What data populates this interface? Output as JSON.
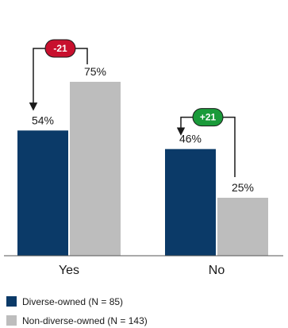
{
  "chart_data": {
    "type": "bar",
    "title": "",
    "xlabel": "",
    "ylabel": "",
    "ylim": [
      0,
      100
    ],
    "value_suffix": "%",
    "grid": false,
    "legend_position": "bottom-left",
    "categories": [
      "Yes",
      "No"
    ],
    "series": [
      {
        "name": "Diverse-owned (N = 85)",
        "color": "#0b3a68",
        "values": [
          54,
          46
        ]
      },
      {
        "name": "Non-diverse-owned (N = 143)",
        "color": "#bdbdbd",
        "values": [
          75,
          25
        ]
      }
    ],
    "annotations": [
      {
        "category": "Yes",
        "label": "-21",
        "color": "#c8102e",
        "arrow_to_series": 0
      },
      {
        "category": "No",
        "label": "+21",
        "color": "#1a9a3a",
        "arrow_to_series": 0
      }
    ]
  }
}
